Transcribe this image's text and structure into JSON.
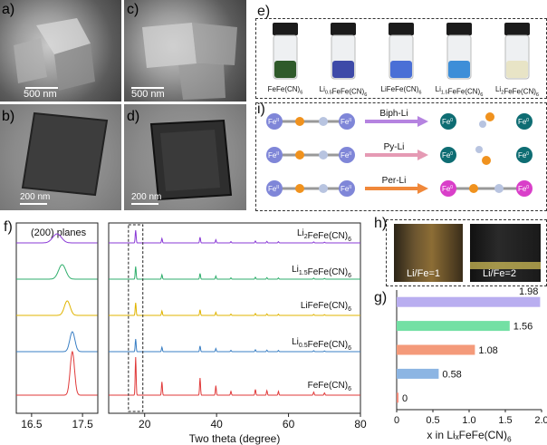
{
  "panels": {
    "a": "a)",
    "b": "b)",
    "c": "c)",
    "d": "d)",
    "e": "e)",
    "f": "f)",
    "g": "g)",
    "h": "h)",
    "i": "i)"
  },
  "micrographs": {
    "a_scale": "500 nm",
    "b_scale": "200 nm",
    "c_scale": "500 nm",
    "d_scale": "200 nm"
  },
  "vials": [
    {
      "label": "FeFe(CN)6",
      "color": "#2f5a2a"
    },
    {
      "label": "Li0.5FeFe(CN)6",
      "color": "#3e4aa8"
    },
    {
      "label": "LiFeFe(CN)6",
      "color": "#4a6fd6"
    },
    {
      "label": "Li1.5FeFe(CN)6",
      "color": "#3d8ed8"
    },
    {
      "label": "Li2FeFe(CN)6",
      "color": "#e8e4c6"
    }
  ],
  "reactions": [
    {
      "reagent": "Biph-Li",
      "arrow_color": "#b583e0"
    },
    {
      "reagent": "Py-Li",
      "arrow_color": "#e59ab4"
    },
    {
      "reagent": "Per-Li",
      "arrow_color": "#f0883a"
    }
  ],
  "ion_labels": {
    "fe2": "Fe",
    "fe2_sup": "II",
    "fe0": "Fe",
    "fe0_sup": "0"
  },
  "xrd": {
    "left_title": "(200) planes",
    "left_ticks": [
      "16.5",
      "17.5"
    ],
    "right_ticks": [
      "20",
      "40",
      "60",
      "80"
    ],
    "xlabel": "Two theta (degree)",
    "series": [
      {
        "name": "Li2FeFe(CN)6",
        "color": "#8a3ad6"
      },
      {
        "name": "Li1.5FeFe(CN)6",
        "color": "#2fae6c"
      },
      {
        "name": "LiFeFe(CN)6",
        "color": "#e0b400"
      },
      {
        "name": "Li0.5FeFe(CN)6",
        "color": "#3a7fc4"
      },
      {
        "name": "FeFe(CN)6",
        "color": "#e03a3a"
      }
    ]
  },
  "h_labels": [
    "Li/Fe=1",
    "Li/Fe=2"
  ],
  "chart_data": {
    "type": "bar",
    "orientation": "horizontal",
    "xlabel": "x in LixFeFe(CN)6",
    "xlim": [
      0,
      2.0
    ],
    "xticks": [
      "0",
      "0.5",
      "1.0",
      "1.5",
      "2.0"
    ],
    "values": [
      1.98,
      1.56,
      1.08,
      0.58,
      0
    ],
    "value_labels": [
      "1.98",
      "1.56",
      "1.08",
      "0.58",
      "0"
    ],
    "colors": [
      "#b9aef0",
      "#73e0a4",
      "#f49a7a",
      "#8cb5e3",
      "#f08a7a"
    ]
  }
}
